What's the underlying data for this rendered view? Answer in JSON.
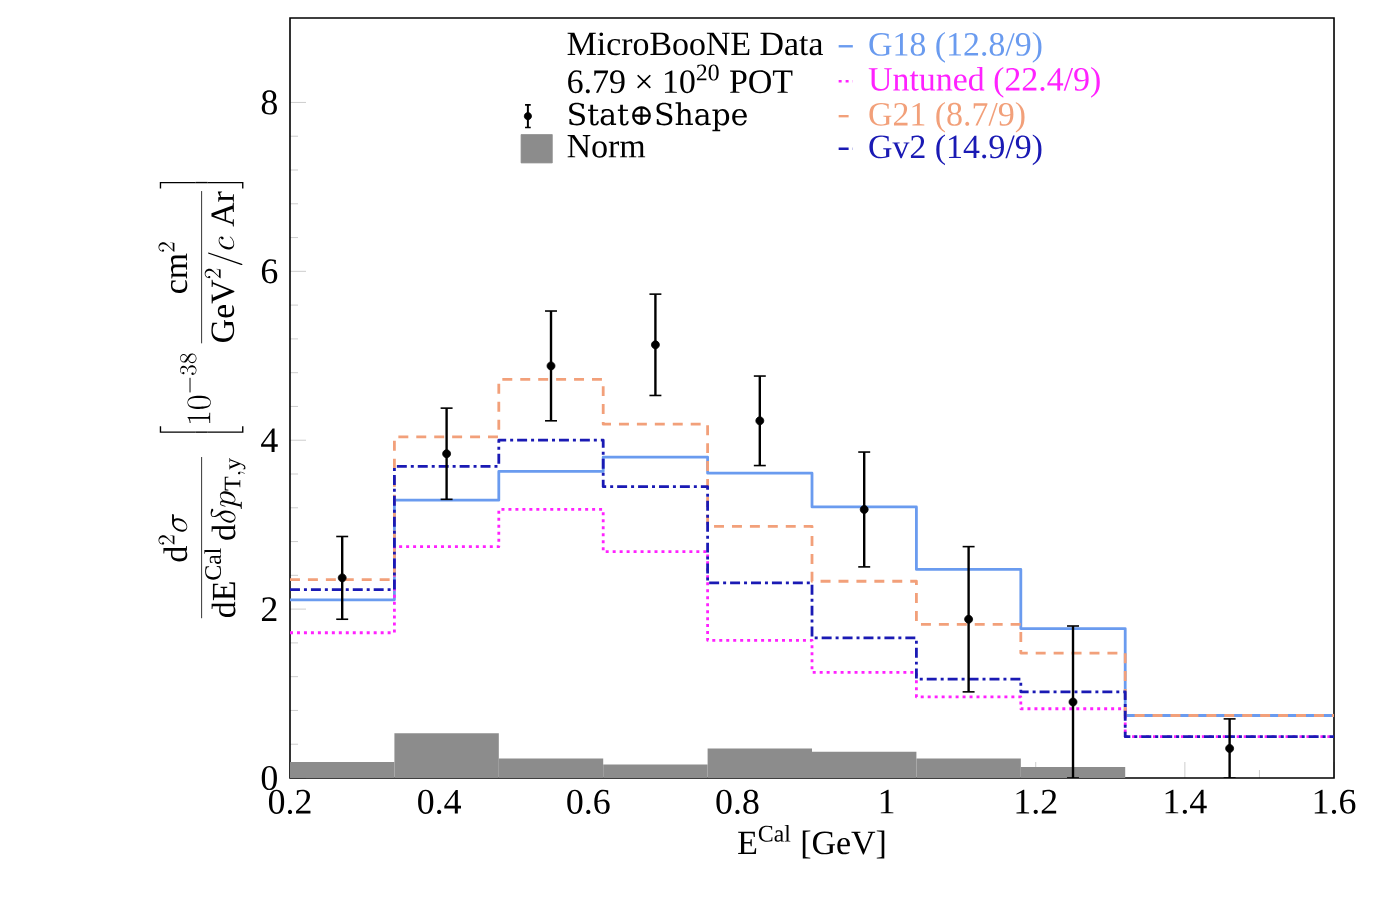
{
  "chart_data": {
    "type": "step",
    "xlabel": "E$^{Cal}$ [GeV]",
    "ylabel": "\\frac{\\mathrm{d}^{2}\\sigma}{\\mathrm{dE}^{\\mathrm{Cal}}\\,\\mathrm{d}\\delta p_{\\mathrm{T,y}}}\\;\\left[10^{-38}\\,\\frac{\\mathrm{cm}^{2}}{\\mathrm{GeV}^{2}/c\\;\\mathrm{Ar}}\\right]",
    "legend_title": "MicroBooNE Data",
    "annotations": [
      "6.79 × 10$^{20}$ POT"
    ],
    "x": [
      0.2,
      0.34,
      0.48,
      0.62,
      0.76,
      0.9,
      1.04,
      1.18,
      1.32,
      1.6
    ],
    "bins": [
      0.2,
      0.34,
      0.48,
      0.62,
      0.76,
      0.9,
      1.04,
      1.18,
      1.32
    ],
    "xlim": [
      0.2,
      1.6
    ],
    "ylim": [
      0,
      9
    ],
    "xticks": [
      0.2,
      0.4,
      0.6,
      0.8,
      1,
      1.2,
      1.4,
      1.6
    ],
    "yticks": [
      0,
      2,
      4,
      6,
      8
    ],
    "legend": "top",
    "series": [
      {
        "name": "Norm",
        "type": "histogram",
        "color": "#8c8c8c",
        "values": [
          0.19,
          0.53,
          0.23,
          0.16,
          0.35,
          0.31,
          0.23,
          0.13
        ]
      },
      {
        "name": "G18 (12.8/9)",
        "color": "#6a9bef",
        "line_style": "solid",
        "values": [
          2.11,
          3.29,
          3.63,
          3.8,
          3.61,
          3.21,
          2.47,
          1.77,
          0.74,
          0.74
        ]
      },
      {
        "name": "Untuned (22.4/9)",
        "color": "#ff22ff",
        "line_style": "dotted",
        "values": [
          1.72,
          2.74,
          3.18,
          2.68,
          1.63,
          1.25,
          0.96,
          0.82,
          0.49,
          0.49
        ]
      },
      {
        "name": "G21 (8.7/9)",
        "color": "#f2a07a",
        "line_style": "dashed",
        "values": [
          2.35,
          4.04,
          4.72,
          4.19,
          2.98,
          2.33,
          1.82,
          1.48,
          0.74,
          0.74
        ]
      },
      {
        "name": "Gv2 (14.9/9)",
        "color": "#1a1ab4",
        "line_style": "dashdot",
        "values": [
          2.23,
          3.69,
          4.0,
          3.45,
          2.31,
          1.66,
          1.17,
          1.02,
          0.49,
          0.49
        ]
      },
      {
        "name": "Stat⊕Shape",
        "type": "scatter",
        "color": "#000000",
        "marker": "circle",
        "x": [
          0.27,
          0.41,
          0.55,
          0.69,
          0.83,
          0.97,
          1.11,
          1.25,
          1.46
        ],
        "values": [
          2.37,
          3.84,
          4.88,
          5.13,
          4.23,
          3.18,
          1.88,
          0.9,
          0.35
        ],
        "errors": [
          0.49,
          0.54,
          0.65,
          0.6,
          0.53,
          0.68,
          0.86,
          0.9,
          0.35
        ]
      }
    ]
  }
}
